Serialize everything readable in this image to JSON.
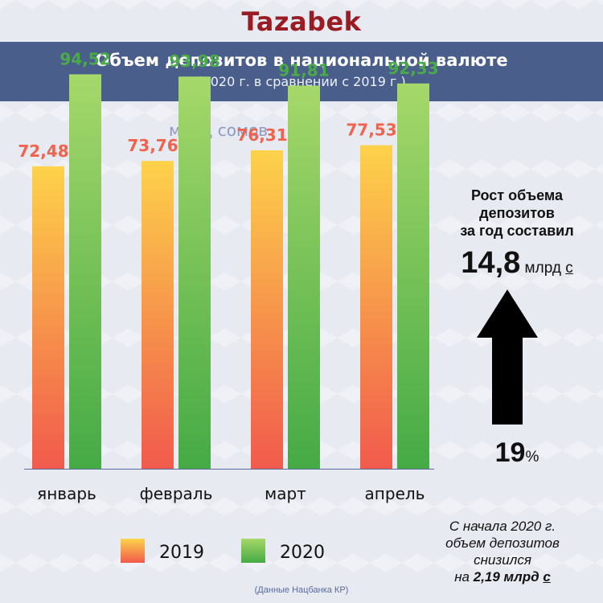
{
  "logo": "Tazabek",
  "header": {
    "title": "Объем депозитов в национальной валюте",
    "subtitle": "(2020 г. в сравнении с 2019 г.)"
  },
  "unit": "млрд сомов",
  "growth": {
    "label_line1": "Рост объема",
    "label_line2": "депозитов",
    "label_line3": "за год составил",
    "value": "14,8",
    "unit": "млрд",
    "currency": "с",
    "percent_value": "19",
    "percent_sign": "%"
  },
  "note": {
    "line1": "С начала 2020 г.",
    "line2": "объем депозитов",
    "line3": "снизился",
    "line4_prefix": "на ",
    "line4_value": "2,19 млрд",
    "line4_currency": "с"
  },
  "source": "(Данные Нацбанка КР)",
  "colors": {
    "brand": "#9a1b22",
    "header_bg": "#4a5e8c",
    "unit_text": "#8f9ac0",
    "label_2019": "#f0624e",
    "label_2020": "#4aaa4a",
    "bar_2019_top": "#fdd24a",
    "bar_2019_bottom": "#f15a4c",
    "bar_2020_top": "#a6d86a",
    "bar_2020_bottom": "#45aa45",
    "arrow": "#000000"
  },
  "chart_data": {
    "type": "bar",
    "categories": [
      "январь",
      "февраль",
      "март",
      "апрель"
    ],
    "series": [
      {
        "name": "2019",
        "values": [
          72.48,
          73.76,
          76.31,
          77.53
        ],
        "labels": [
          "72,48",
          "73,76",
          "76,31",
          "77,53"
        ]
      },
      {
        "name": "2020",
        "values": [
          94.52,
          93.98,
          91.81,
          92.33
        ],
        "labels": [
          "94,52",
          "93,98",
          "91,81",
          "92,33"
        ]
      }
    ],
    "ylim": [
      0,
      100
    ],
    "grid": false,
    "legend": "bottom"
  }
}
